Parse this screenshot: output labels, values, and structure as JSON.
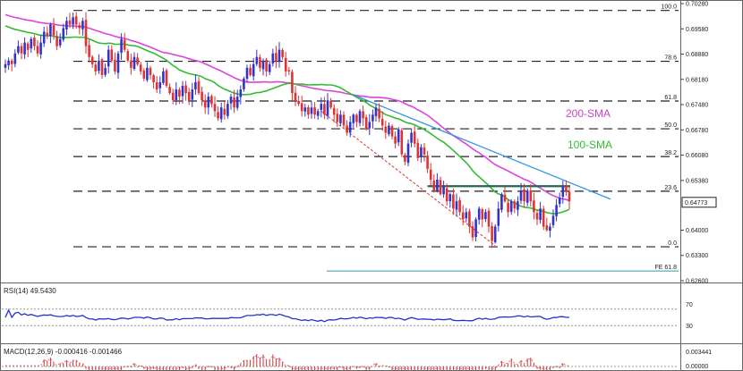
{
  "chart_data": [
    {
      "type": "candlestick",
      "panel": "price",
      "ylim": [
        0.626,
        0.7028
      ],
      "y_ticks": [
        "0.70280",
        "0.69580",
        "0.68880",
        "0.68180",
        "0.67480",
        "0.66780",
        "0.66080",
        "0.65380",
        "0.64000",
        "0.63300",
        "0.62600"
      ],
      "current_price_label": "0.64773",
      "current_price": 0.64773,
      "fib_levels": [
        {
          "label": "100.0",
          "value": 0.7009
        },
        {
          "label": "78.6",
          "value": 0.6868
        },
        {
          "label": "61.8",
          "value": 0.6758
        },
        {
          "label": "50.0",
          "value": 0.6681
        },
        {
          "label": "38.2",
          "value": 0.6604
        },
        {
          "label": "23.6",
          "value": 0.6508
        },
        {
          "label": "0.0",
          "value": 0.6354
        }
      ],
      "fe_level": {
        "label": "FE 61.8",
        "value": 0.6287
      },
      "resistance_level": 0.6522,
      "sma_labels": [
        {
          "text": "200-SMA",
          "color": "#cc44cc"
        },
        {
          "text": "100-SMA",
          "color": "#33bb33"
        }
      ],
      "colors": {
        "candle_up": "#3333cc",
        "candle_down": "#dd3333",
        "sma200": "#dd44dd",
        "sma100": "#33bb33",
        "trendline": "#3399dd",
        "support_channel": "#dd3333",
        "resistance": "#226655",
        "fe_line": "#339999"
      },
      "closes": [
        0.686,
        0.687,
        0.686,
        0.689,
        0.691,
        0.689,
        0.692,
        0.69,
        0.693,
        0.691,
        0.689,
        0.692,
        0.695,
        0.694,
        0.697,
        0.694,
        0.691,
        0.693,
        0.696,
        0.698,
        0.697,
        0.699,
        0.697,
        0.696,
        0.698,
        0.691,
        0.688,
        0.686,
        0.684,
        0.687,
        0.683,
        0.685,
        0.69,
        0.687,
        0.684,
        0.689,
        0.693,
        0.69,
        0.687,
        0.685,
        0.688,
        0.686,
        0.684,
        0.682,
        0.685,
        0.683,
        0.681,
        0.679,
        0.681,
        0.684,
        0.68,
        0.678,
        0.676,
        0.679,
        0.677,
        0.68,
        0.678,
        0.676,
        0.679,
        0.681,
        0.678,
        0.676,
        0.674,
        0.677,
        0.675,
        0.673,
        0.671,
        0.674,
        0.672,
        0.675,
        0.677,
        0.674,
        0.677,
        0.679,
        0.682,
        0.685,
        0.683,
        0.686,
        0.688,
        0.685,
        0.687,
        0.684,
        0.686,
        0.689,
        0.687,
        0.69,
        0.688,
        0.684,
        0.684,
        0.678,
        0.676,
        0.675,
        0.673,
        0.674,
        0.672,
        0.674,
        0.672,
        0.673,
        0.675,
        0.672,
        0.676,
        0.674,
        0.672,
        0.67,
        0.672,
        0.669,
        0.667,
        0.67,
        0.672,
        0.67,
        0.673,
        0.671,
        0.668,
        0.67,
        0.672,
        0.674,
        0.671,
        0.669,
        0.667,
        0.669,
        0.666,
        0.664,
        0.668,
        0.661,
        0.659,
        0.664,
        0.667,
        0.664,
        0.66,
        0.663,
        0.661,
        0.657,
        0.654,
        0.651,
        0.654,
        0.65,
        0.652,
        0.648,
        0.65,
        0.646,
        0.648,
        0.645,
        0.643,
        0.645,
        0.641,
        0.638,
        0.643,
        0.646,
        0.643,
        0.645,
        0.641,
        0.637,
        0.641,
        0.646,
        0.65,
        0.648,
        0.645,
        0.648,
        0.646,
        0.648,
        0.651,
        0.648,
        0.651,
        0.648,
        0.645,
        0.643,
        0.646,
        0.641,
        0.64,
        0.641,
        0.644,
        0.647,
        0.649,
        0.652,
        0.651,
        0.648
      ]
    },
    {
      "type": "line",
      "panel": "rsi",
      "title": "RSI(14) 49.5430",
      "ylim": [
        0,
        100
      ],
      "y_ticks": [
        "70",
        "30"
      ],
      "levels": [
        70,
        30
      ],
      "color": "#2233cc"
    },
    {
      "type": "histogram",
      "panel": "macd",
      "title": "MACD(12,26,9) -0.000416 -0.001466",
      "y_ticks": [
        "0.003441",
        "0.00000"
      ],
      "colors": {
        "hist": "#cc3333",
        "signal": "#dd5555"
      }
    }
  ]
}
